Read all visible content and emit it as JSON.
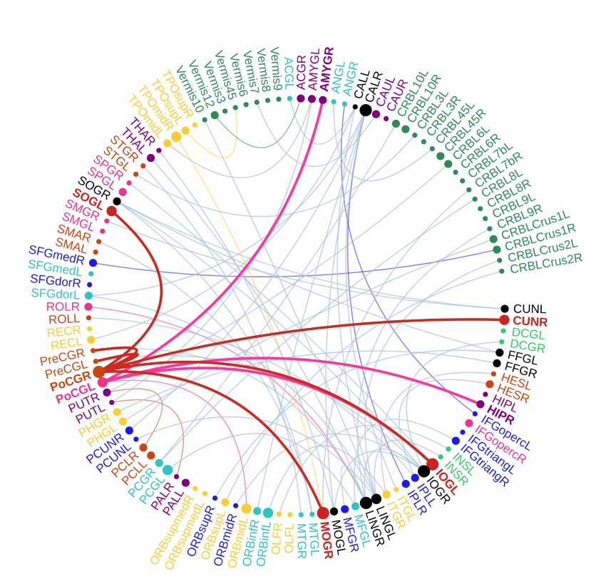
{
  "diagram": {
    "type": "connectogram",
    "colors": {
      "green": "#2e8b57",
      "black": "#000000",
      "purple": "#800080",
      "cyan": "#2ec4c4",
      "gold": "#ffcc33",
      "orange_red": "#cc4411",
      "blue": "#1a1aee",
      "pink": "#ee3388",
      "red": "#cc2222",
      "light_green": "#33cc66",
      "edge_faint": "#a9c2d9",
      "edge_pink": "#ff3399",
      "edge_red": "#cc2a1f"
    },
    "nodes": [
      {
        "label": "CUNL",
        "color": "black",
        "size": "m"
      },
      {
        "label": "CUNR",
        "color": "red",
        "size": "l",
        "bold": true
      },
      {
        "label": "DCGL",
        "color": "light_green",
        "size": "s"
      },
      {
        "label": "DCGR",
        "color": "light_green",
        "size": "s"
      },
      {
        "label": "FFGL",
        "color": "black",
        "size": "m"
      },
      {
        "label": "FFGR",
        "color": "black",
        "size": "m"
      },
      {
        "label": "HESL",
        "color": "orange_red",
        "size": "s"
      },
      {
        "label": "HESR",
        "color": "orange_red",
        "size": "m"
      },
      {
        "label": "HIPL",
        "color": "purple",
        "size": "s"
      },
      {
        "label": "HIPR",
        "color": "purple",
        "size": "m",
        "bold": true
      },
      {
        "label": "IFGopercL",
        "color": "blue",
        "size": "s"
      },
      {
        "label": "IFGopercR",
        "color": "pink",
        "size": "m"
      },
      {
        "label": "IFGtriangL",
        "color": "blue",
        "size": "s"
      },
      {
        "label": "IFGtriangR",
        "color": "blue",
        "size": "m"
      },
      {
        "label": "INSL",
        "color": "light_green",
        "size": "s"
      },
      {
        "label": "INSR",
        "color": "light_green",
        "size": "s"
      },
      {
        "label": "IOGL",
        "color": "red",
        "size": "xl",
        "bold": true
      },
      {
        "label": "IOGR",
        "color": "black",
        "size": "xl"
      },
      {
        "label": "IPLL",
        "color": "blue",
        "size": "m"
      },
      {
        "label": "IPLR",
        "color": "blue",
        "size": "m"
      },
      {
        "label": "ITGL",
        "color": "gold",
        "size": "s"
      },
      {
        "label": "ITGR",
        "color": "gold",
        "size": "m"
      },
      {
        "label": "LINGL",
        "color": "black",
        "size": "l"
      },
      {
        "label": "LINGR",
        "color": "black",
        "size": "xl"
      },
      {
        "label": "MFGL",
        "color": "cyan",
        "size": "m"
      },
      {
        "label": "MFGR",
        "color": "blue",
        "size": "m"
      },
      {
        "label": "MOGL",
        "color": "black",
        "size": "m"
      },
      {
        "label": "MOGR",
        "color": "red",
        "size": "xl",
        "bold": true
      },
      {
        "label": "MTGL",
        "color": "cyan",
        "size": "s"
      },
      {
        "label": "MTGR",
        "color": "cyan",
        "size": "s"
      },
      {
        "label": "OLFL",
        "color": "gold",
        "size": "s"
      },
      {
        "label": "OLFR",
        "color": "gold",
        "size": "s"
      },
      {
        "label": "ORBinfL",
        "color": "cyan",
        "size": "l"
      },
      {
        "label": "ORBinfR",
        "color": "cyan",
        "size": "m"
      },
      {
        "label": "ORBmidL",
        "color": "gold",
        "size": "l"
      },
      {
        "label": "ORBmidR",
        "color": "blue",
        "size": "s"
      },
      {
        "label": "ORBsupL",
        "color": "gold",
        "size": "m"
      },
      {
        "label": "ORBsupR",
        "color": "blue",
        "size": "s"
      },
      {
        "label": "ORBsupmedL",
        "color": "gold",
        "size": "s"
      },
      {
        "label": "ORBsupmedR",
        "color": "gold",
        "size": "s"
      },
      {
        "label": "PALL",
        "color": "purple",
        "size": "m"
      },
      {
        "label": "PALR",
        "color": "purple",
        "size": "s"
      },
      {
        "label": "PCGL",
        "color": "cyan",
        "size": "l"
      },
      {
        "label": "PCGR",
        "color": "cyan",
        "size": "m"
      },
      {
        "label": "PCLL",
        "color": "orange_red",
        "size": "m"
      },
      {
        "label": "PCLR",
        "color": "orange_red",
        "size": "m"
      },
      {
        "label": "PCUNL",
        "color": "blue",
        "size": "s"
      },
      {
        "label": "PCUNR",
        "color": "blue",
        "size": "m"
      },
      {
        "label": "PHGL",
        "color": "gold",
        "size": "m"
      },
      {
        "label": "PHGR",
        "color": "gold",
        "size": "m"
      },
      {
        "label": "PUTL",
        "color": "purple",
        "size": "s"
      },
      {
        "label": "PUTR",
        "color": "purple",
        "size": "m"
      },
      {
        "label": "PoCGL",
        "color": "pink",
        "size": "l",
        "bold": true
      },
      {
        "label": "PoCGR",
        "color": "orange_red",
        "size": "xl",
        "bold": true
      },
      {
        "label": "PreCGL",
        "color": "orange_red",
        "size": "s"
      },
      {
        "label": "PreCGR",
        "color": "orange_red",
        "size": "s"
      },
      {
        "label": "RECL",
        "color": "gold",
        "size": "m"
      },
      {
        "label": "RECR",
        "color": "gold",
        "size": "s"
      },
      {
        "label": "ROLL",
        "color": "orange_red",
        "size": "s"
      },
      {
        "label": "ROLR",
        "color": "pink",
        "size": "m"
      },
      {
        "label": "SFGdorL",
        "color": "cyan",
        "size": "m"
      },
      {
        "label": "SFGdorR",
        "color": "blue",
        "size": "s"
      },
      {
        "label": "SFGmedL",
        "color": "cyan",
        "size": "s"
      },
      {
        "label": "SFGmedR",
        "color": "blue",
        "size": "m"
      },
      {
        "label": "SMAL",
        "color": "orange_red",
        "size": "s"
      },
      {
        "label": "SMAR",
        "color": "orange_red",
        "size": "s"
      },
      {
        "label": "SMGL",
        "color": "pink",
        "size": "s"
      },
      {
        "label": "SMGR",
        "color": "pink",
        "size": "s"
      },
      {
        "label": "SOGL",
        "color": "red",
        "size": "l",
        "bold": true
      },
      {
        "label": "SOGR",
        "color": "black",
        "size": "m"
      },
      {
        "label": "SPGL",
        "color": "pink",
        "size": "m"
      },
      {
        "label": "SPGR",
        "color": "pink",
        "size": "s"
      },
      {
        "label": "STGL",
        "color": "orange_red",
        "size": "s"
      },
      {
        "label": "STGR",
        "color": "orange_red",
        "size": "s"
      },
      {
        "label": "THAL",
        "color": "purple",
        "size": "m"
      },
      {
        "label": "THAR",
        "color": "purple",
        "size": "s"
      },
      {
        "label": "TPOmidL",
        "color": "gold",
        "size": "m"
      },
      {
        "label": "TPOmidR",
        "color": "gold",
        "size": "l"
      },
      {
        "label": "TPOsupL",
        "color": "gold",
        "size": "m"
      },
      {
        "label": "TPOsupR",
        "color": "gold",
        "size": "s"
      },
      {
        "label": "Vermis10",
        "color": "green",
        "size": "s"
      },
      {
        "label": "Vermis12",
        "color": "green",
        "size": "m"
      },
      {
        "label": "Vermis3",
        "color": "green",
        "size": "s"
      },
      {
        "label": "Vermis45",
        "color": "green",
        "size": "s"
      },
      {
        "label": "Vermis6",
        "color": "green",
        "size": "s"
      },
      {
        "label": "Vermis7",
        "color": "green",
        "size": "s"
      },
      {
        "label": "Vermis8",
        "color": "green",
        "size": "s"
      },
      {
        "label": "Vermis9",
        "color": "green",
        "size": "s"
      },
      {
        "label": "ACGL",
        "color": "cyan",
        "size": "s"
      },
      {
        "label": "ACGR",
        "color": "purple",
        "size": "m"
      },
      {
        "label": "AMYGL",
        "color": "purple",
        "size": "m"
      },
      {
        "label": "AMYGR",
        "color": "purple",
        "size": "m",
        "bold": true
      },
      {
        "label": "ANGL",
        "color": "cyan",
        "size": "s"
      },
      {
        "label": "ANGR",
        "color": "cyan",
        "size": "s"
      },
      {
        "label": "CALL",
        "color": "black",
        "size": "s"
      },
      {
        "label": "CALR",
        "color": "black",
        "size": "xl"
      },
      {
        "label": "CAUL",
        "color": "purple",
        "size": "m"
      },
      {
        "label": "CAUR",
        "color": "purple",
        "size": "s"
      },
      {
        "label": "CRBL10L",
        "color": "green",
        "size": "m"
      },
      {
        "label": "CRBL10R",
        "color": "green",
        "size": "m"
      },
      {
        "label": "CRBL3L",
        "color": "green",
        "size": "s"
      },
      {
        "label": "CRBL3R",
        "color": "green",
        "size": "s"
      },
      {
        "label": "CRBL45L",
        "color": "green",
        "size": "s"
      },
      {
        "label": "CRBL45R",
        "color": "green",
        "size": "m"
      },
      {
        "label": "CRBL6L",
        "color": "green",
        "size": "m"
      },
      {
        "label": "CRBL6R",
        "color": "green",
        "size": "s"
      },
      {
        "label": "CRBL7bL",
        "color": "green",
        "size": "s"
      },
      {
        "label": "CRBL7bR",
        "color": "green",
        "size": "s"
      },
      {
        "label": "CRBL8L",
        "color": "green",
        "size": "s"
      },
      {
        "label": "CRBL8R",
        "color": "green",
        "size": "s"
      },
      {
        "label": "CRBL9L",
        "color": "green",
        "size": "s"
      },
      {
        "label": "CRBL9R",
        "color": "green",
        "size": "s"
      },
      {
        "label": "CRBLCrus1L",
        "color": "green",
        "size": "m"
      },
      {
        "label": "CRBLCrus1R",
        "color": "green",
        "size": "m"
      },
      {
        "label": "CRBLCrus2L",
        "color": "green",
        "size": "s"
      },
      {
        "label": "CRBLCrus2R",
        "color": "green",
        "size": "s"
      }
    ],
    "edges": [
      {
        "source": "PoCGL",
        "target": "AMYGR",
        "style": "strong",
        "color": "edge_pink"
      },
      {
        "source": "PoCGL",
        "target": "HIPR",
        "style": "strong",
        "color": "edge_pink"
      },
      {
        "source": "PoCGL",
        "target": "IOGL",
        "style": "strong",
        "color": "edge_pink"
      },
      {
        "source": "PoCGR",
        "target": "CUNR",
        "style": "strong",
        "color": "edge_red"
      },
      {
        "source": "PoCGR",
        "target": "SOGL",
        "style": "strong",
        "color": "edge_red"
      },
      {
        "source": "PoCGR",
        "target": "MOGR",
        "style": "strong",
        "color": "edge_red"
      },
      {
        "source": "PoCGR",
        "target": "IOGL",
        "style": "strong",
        "color": "edge_red"
      },
      {
        "source": "PoCGR",
        "target": "PreCGR",
        "style": "strong",
        "color": "edge_red"
      },
      {
        "source": "PoCGR",
        "target": "PreCGL",
        "style": "strong",
        "color": "edge_red"
      },
      {
        "source": "SFGmedR",
        "target": "CRBLCrus1R",
        "style": "faint",
        "color": "blue"
      },
      {
        "source": "ROLR",
        "target": "LINGR",
        "style": "faint",
        "color": "pink"
      },
      {
        "source": "PALR",
        "target": "PUTL",
        "style": "faint",
        "color": "orange_red"
      },
      {
        "source": "PCLR",
        "target": "PUTR",
        "style": "faint",
        "color": "orange_red"
      },
      {
        "source": "ORBmidL",
        "target": "PoCGL",
        "style": "faint",
        "color": "pink"
      },
      {
        "source": "TPOmidR",
        "target": "MOGR",
        "style": "faint",
        "color": "gold"
      },
      {
        "source": "TPOsupL",
        "target": "Vermis45",
        "style": "faint",
        "color": "gold"
      },
      {
        "source": "CALR",
        "target": "IPLR",
        "style": "faint",
        "color": "blue"
      },
      {
        "source": "ANGR",
        "target": "IFGopercL",
        "style": "faint",
        "color": "blue"
      },
      {
        "source": "Vermis12",
        "target": "ACGR",
        "style": "faint",
        "color": "green"
      },
      {
        "source": "SOGR",
        "target": "CUNL",
        "style": "faint",
        "color": "edge_faint"
      },
      {
        "source": "SOGR",
        "target": "FFGL",
        "style": "faint",
        "color": "edge_faint"
      },
      {
        "source": "SOGR",
        "target": "IOGR",
        "style": "faint",
        "color": "edge_faint"
      },
      {
        "source": "SFGdorL",
        "target": "LINGL",
        "style": "faint",
        "color": "edge_faint"
      },
      {
        "source": "SFGdorL",
        "target": "CALR",
        "style": "faint",
        "color": "edge_faint"
      },
      {
        "source": "RECL",
        "target": "CALL",
        "style": "faint",
        "color": "edge_faint"
      },
      {
        "source": "ROLL",
        "target": "IPLL",
        "style": "faint",
        "color": "edge_faint"
      },
      {
        "source": "PreCGR",
        "target": "LINGR",
        "style": "faint",
        "color": "edge_faint"
      },
      {
        "source": "PreCGL",
        "target": "IOGR",
        "style": "faint",
        "color": "edge_faint"
      },
      {
        "source": "PUTR",
        "target": "CRBL6L",
        "style": "faint",
        "color": "edge_faint"
      },
      {
        "source": "PUTL",
        "target": "AMYGL",
        "style": "faint",
        "color": "edge_faint"
      },
      {
        "source": "PHGR",
        "target": "FFGR",
        "style": "faint",
        "color": "edge_faint"
      },
      {
        "source": "PHGL",
        "target": "CRBLCrus1L",
        "style": "faint",
        "color": "edge_faint"
      },
      {
        "source": "PCUNR",
        "target": "CALR",
        "style": "faint",
        "color": "edge_faint"
      },
      {
        "source": "PCUNL",
        "target": "LINGL",
        "style": "faint",
        "color": "edge_faint"
      },
      {
        "source": "PCGR",
        "target": "CRBL10L",
        "style": "faint",
        "color": "edge_faint"
      },
      {
        "source": "PCGL",
        "target": "MFGL",
        "style": "faint",
        "color": "edge_faint"
      },
      {
        "source": "ORBsupR",
        "target": "FFGL",
        "style": "faint",
        "color": "edge_faint"
      },
      {
        "source": "ORBmidR",
        "target": "IOGR",
        "style": "faint",
        "color": "edge_faint"
      },
      {
        "source": "ORBinfR",
        "target": "CALR",
        "style": "faint",
        "color": "edge_faint"
      },
      {
        "source": "ORBinfL",
        "target": "ITGR",
        "style": "faint",
        "color": "edge_faint"
      },
      {
        "source": "OLFR",
        "target": "INSL",
        "style": "faint",
        "color": "edge_faint"
      },
      {
        "source": "MTGL",
        "target": "SOGR",
        "style": "faint",
        "color": "edge_faint"
      },
      {
        "source": "MTGR",
        "target": "STGR",
        "style": "faint",
        "color": "edge_faint"
      },
      {
        "source": "MOGL",
        "target": "CALR",
        "style": "faint",
        "color": "edge_faint"
      },
      {
        "source": "MOGL",
        "target": "IOGR",
        "style": "faint",
        "color": "edge_faint"
      },
      {
        "source": "MFGR",
        "target": "LINGR",
        "style": "faint",
        "color": "edge_faint"
      },
      {
        "source": "LINGL",
        "target": "CRBLCrus2L",
        "style": "faint",
        "color": "edge_faint"
      },
      {
        "source": "LINGR",
        "target": "IOGR",
        "style": "faint",
        "color": "edge_faint"
      },
      {
        "source": "IPLL",
        "target": "HESR",
        "style": "faint",
        "color": "edge_faint"
      },
      {
        "source": "ITGL",
        "target": "CALR",
        "style": "faint",
        "color": "edge_faint"
      },
      {
        "source": "THAL",
        "target": "LINGR",
        "style": "faint",
        "color": "edge_faint"
      },
      {
        "source": "THAR",
        "target": "MOGL",
        "style": "faint",
        "color": "edge_faint"
      },
      {
        "source": "STGL",
        "target": "CRBL3L",
        "style": "faint",
        "color": "edge_faint"
      },
      {
        "source": "SPGR",
        "target": "IOGL",
        "style": "faint",
        "color": "edge_faint"
      },
      {
        "source": "SMGR",
        "target": "CUNL",
        "style": "faint",
        "color": "edge_faint"
      },
      {
        "source": "SMAR",
        "target": "MTGL",
        "style": "faint",
        "color": "edge_faint"
      },
      {
        "source": "TPOmidL",
        "target": "AMYGL",
        "style": "faint",
        "color": "edge_faint"
      },
      {
        "source": "Vermis10",
        "target": "LINGL",
        "style": "faint",
        "color": "edge_faint"
      },
      {
        "source": "ACGL",
        "target": "CALL",
        "style": "faint",
        "color": "edge_faint"
      },
      {
        "source": "ANGL",
        "target": "CRBL45L",
        "style": "faint",
        "color": "edge_faint"
      },
      {
        "source": "CAUL",
        "target": "Vermis7",
        "style": "faint",
        "color": "edge_faint"
      },
      {
        "source": "CALL",
        "target": "LINGL",
        "style": "faint",
        "color": "edge_faint"
      },
      {
        "source": "CRBL9R",
        "target": "LINGR",
        "style": "faint",
        "color": "edge_faint"
      },
      {
        "source": "CRBL7bR",
        "target": "MOGR",
        "style": "faint",
        "color": "edge_faint"
      },
      {
        "source": "CRBL8L",
        "target": "PCGR",
        "style": "faint",
        "color": "edge_faint"
      },
      {
        "source": "CRBLCrus2R",
        "target": "ORBsupL",
        "style": "faint",
        "color": "edge_faint"
      },
      {
        "source": "DCGR",
        "target": "IOGR",
        "style": "faint",
        "color": "edge_faint"
      },
      {
        "source": "HESL",
        "target": "ITGR",
        "style": "faint",
        "color": "edge_faint"
      },
      {
        "source": "IFGtriangR",
        "target": "MFGL",
        "style": "faint",
        "color": "edge_faint"
      },
      {
        "source": "INSR",
        "target": "LINGL",
        "style": "faint",
        "color": "edge_faint"
      }
    ]
  }
}
